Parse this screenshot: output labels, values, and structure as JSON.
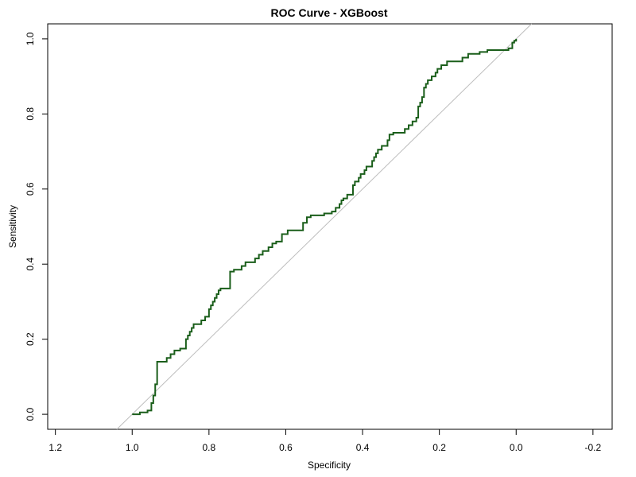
{
  "chart_data": {
    "type": "line",
    "title": "ROC Curve - XGBoost",
    "xlabel": "Specificity",
    "ylabel": "Sensitivity",
    "x_reversed": true,
    "xlim": [
      1.22,
      -0.25
    ],
    "ylim": [
      -0.04,
      1.04
    ],
    "xticks": [
      1.2,
      1.0,
      0.8,
      0.6,
      0.4,
      0.2,
      0.0,
      -0.2
    ],
    "xtick_labels": [
      "1.2",
      "1.0",
      "0.8",
      "0.6",
      "0.4",
      "0.2",
      "0.0",
      "-0.2"
    ],
    "yticks": [
      0.0,
      0.2,
      0.4,
      0.6,
      0.8,
      1.0
    ],
    "ytick_labels": [
      "0.0",
      "0.2",
      "0.4",
      "0.6",
      "0.8",
      "1.0"
    ],
    "grid": false,
    "reference_line": {
      "from": [
        1.0,
        0.0
      ],
      "to": [
        0.0,
        1.0
      ],
      "color": "#bdbdbd"
    },
    "series": [
      {
        "color": "#1a5e1a",
        "points": [
          [
            1.0,
            0.0
          ],
          [
            0.98,
            0.0
          ],
          [
            0.98,
            0.005
          ],
          [
            0.96,
            0.005
          ],
          [
            0.96,
            0.01
          ],
          [
            0.95,
            0.01
          ],
          [
            0.95,
            0.03
          ],
          [
            0.945,
            0.03
          ],
          [
            0.945,
            0.05
          ],
          [
            0.94,
            0.05
          ],
          [
            0.94,
            0.08
          ],
          [
            0.935,
            0.08
          ],
          [
            0.935,
            0.14
          ],
          [
            0.91,
            0.14
          ],
          [
            0.91,
            0.15
          ],
          [
            0.9,
            0.15
          ],
          [
            0.9,
            0.16
          ],
          [
            0.89,
            0.16
          ],
          [
            0.89,
            0.17
          ],
          [
            0.875,
            0.17
          ],
          [
            0.875,
            0.175
          ],
          [
            0.86,
            0.175
          ],
          [
            0.86,
            0.2
          ],
          [
            0.855,
            0.2
          ],
          [
            0.855,
            0.21
          ],
          [
            0.85,
            0.21
          ],
          [
            0.85,
            0.22
          ],
          [
            0.845,
            0.22
          ],
          [
            0.845,
            0.23
          ],
          [
            0.84,
            0.23
          ],
          [
            0.84,
            0.24
          ],
          [
            0.82,
            0.24
          ],
          [
            0.82,
            0.25
          ],
          [
            0.81,
            0.25
          ],
          [
            0.81,
            0.26
          ],
          [
            0.8,
            0.26
          ],
          [
            0.8,
            0.28
          ],
          [
            0.795,
            0.28
          ],
          [
            0.795,
            0.29
          ],
          [
            0.79,
            0.29
          ],
          [
            0.79,
            0.3
          ],
          [
            0.785,
            0.3
          ],
          [
            0.785,
            0.31
          ],
          [
            0.78,
            0.31
          ],
          [
            0.78,
            0.32
          ],
          [
            0.775,
            0.32
          ],
          [
            0.775,
            0.33
          ],
          [
            0.77,
            0.33
          ],
          [
            0.77,
            0.335
          ],
          [
            0.745,
            0.335
          ],
          [
            0.745,
            0.38
          ],
          [
            0.735,
            0.38
          ],
          [
            0.735,
            0.385
          ],
          [
            0.715,
            0.385
          ],
          [
            0.715,
            0.395
          ],
          [
            0.705,
            0.395
          ],
          [
            0.705,
            0.405
          ],
          [
            0.68,
            0.405
          ],
          [
            0.68,
            0.415
          ],
          [
            0.67,
            0.415
          ],
          [
            0.67,
            0.425
          ],
          [
            0.66,
            0.425
          ],
          [
            0.66,
            0.435
          ],
          [
            0.645,
            0.435
          ],
          [
            0.645,
            0.445
          ],
          [
            0.635,
            0.445
          ],
          [
            0.635,
            0.455
          ],
          [
            0.625,
            0.455
          ],
          [
            0.625,
            0.46
          ],
          [
            0.61,
            0.46
          ],
          [
            0.61,
            0.48
          ],
          [
            0.595,
            0.48
          ],
          [
            0.595,
            0.49
          ],
          [
            0.555,
            0.49
          ],
          [
            0.555,
            0.51
          ],
          [
            0.545,
            0.51
          ],
          [
            0.545,
            0.525
          ],
          [
            0.535,
            0.525
          ],
          [
            0.535,
            0.53
          ],
          [
            0.5,
            0.53
          ],
          [
            0.5,
            0.535
          ],
          [
            0.48,
            0.535
          ],
          [
            0.48,
            0.54
          ],
          [
            0.47,
            0.54
          ],
          [
            0.47,
            0.55
          ],
          [
            0.46,
            0.55
          ],
          [
            0.46,
            0.56
          ],
          [
            0.455,
            0.56
          ],
          [
            0.455,
            0.57
          ],
          [
            0.45,
            0.57
          ],
          [
            0.45,
            0.575
          ],
          [
            0.44,
            0.575
          ],
          [
            0.44,
            0.585
          ],
          [
            0.425,
            0.585
          ],
          [
            0.425,
            0.61
          ],
          [
            0.42,
            0.61
          ],
          [
            0.42,
            0.62
          ],
          [
            0.41,
            0.62
          ],
          [
            0.41,
            0.63
          ],
          [
            0.405,
            0.63
          ],
          [
            0.405,
            0.64
          ],
          [
            0.395,
            0.64
          ],
          [
            0.395,
            0.65
          ],
          [
            0.39,
            0.65
          ],
          [
            0.39,
            0.66
          ],
          [
            0.375,
            0.66
          ],
          [
            0.375,
            0.675
          ],
          [
            0.37,
            0.675
          ],
          [
            0.37,
            0.685
          ],
          [
            0.365,
            0.685
          ],
          [
            0.365,
            0.695
          ],
          [
            0.36,
            0.695
          ],
          [
            0.36,
            0.705
          ],
          [
            0.35,
            0.705
          ],
          [
            0.35,
            0.715
          ],
          [
            0.335,
            0.715
          ],
          [
            0.335,
            0.73
          ],
          [
            0.33,
            0.73
          ],
          [
            0.33,
            0.745
          ],
          [
            0.32,
            0.745
          ],
          [
            0.32,
            0.75
          ],
          [
            0.29,
            0.75
          ],
          [
            0.29,
            0.76
          ],
          [
            0.28,
            0.76
          ],
          [
            0.28,
            0.77
          ],
          [
            0.27,
            0.77
          ],
          [
            0.27,
            0.78
          ],
          [
            0.26,
            0.78
          ],
          [
            0.26,
            0.79
          ],
          [
            0.255,
            0.79
          ],
          [
            0.255,
            0.82
          ],
          [
            0.25,
            0.82
          ],
          [
            0.25,
            0.83
          ],
          [
            0.245,
            0.83
          ],
          [
            0.245,
            0.845
          ],
          [
            0.24,
            0.845
          ],
          [
            0.24,
            0.87
          ],
          [
            0.235,
            0.87
          ],
          [
            0.235,
            0.88
          ],
          [
            0.23,
            0.88
          ],
          [
            0.23,
            0.89
          ],
          [
            0.22,
            0.89
          ],
          [
            0.22,
            0.9
          ],
          [
            0.21,
            0.9
          ],
          [
            0.21,
            0.91
          ],
          [
            0.205,
            0.91
          ],
          [
            0.205,
            0.92
          ],
          [
            0.195,
            0.92
          ],
          [
            0.195,
            0.93
          ],
          [
            0.18,
            0.93
          ],
          [
            0.18,
            0.94
          ],
          [
            0.14,
            0.94
          ],
          [
            0.14,
            0.95
          ],
          [
            0.125,
            0.95
          ],
          [
            0.125,
            0.96
          ],
          [
            0.095,
            0.96
          ],
          [
            0.095,
            0.965
          ],
          [
            0.075,
            0.965
          ],
          [
            0.075,
            0.97
          ],
          [
            0.02,
            0.97
          ],
          [
            0.02,
            0.975
          ],
          [
            0.01,
            0.975
          ],
          [
            0.01,
            0.99
          ],
          [
            0.005,
            0.99
          ],
          [
            0.005,
            0.995
          ],
          [
            0.0,
            0.995
          ],
          [
            0.0,
            1.0
          ]
        ]
      }
    ]
  }
}
